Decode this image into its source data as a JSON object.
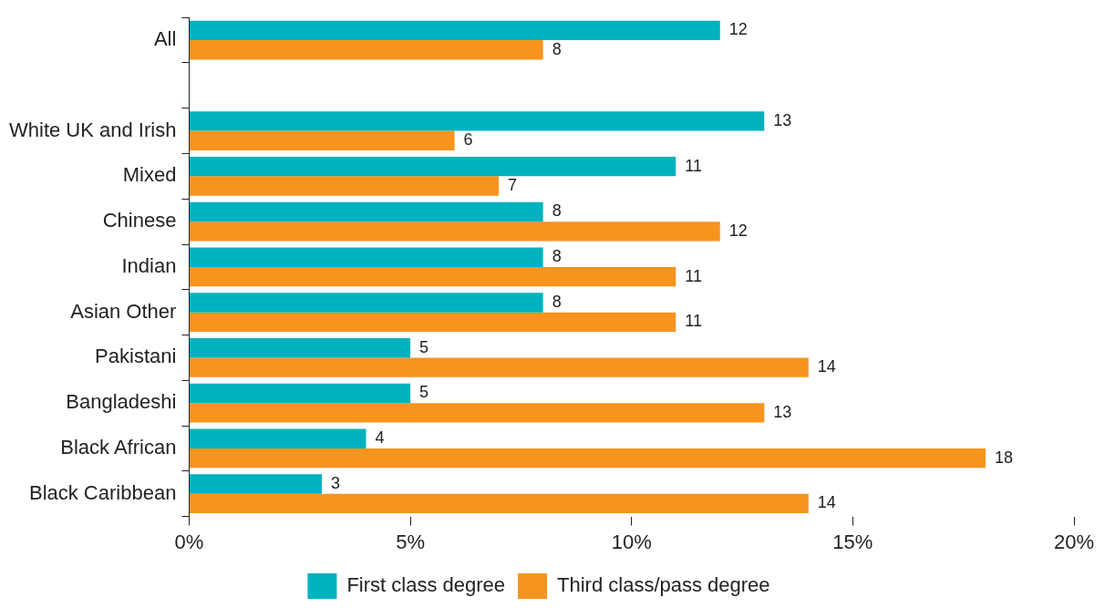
{
  "chart_data": {
    "type": "bar",
    "orientation": "horizontal",
    "categories": [
      "All",
      null,
      "White UK and Irish",
      "Mixed",
      "Chinese",
      "Indian",
      "Asian Other",
      "Pakistani",
      "Bangladeshi",
      "Black African",
      "Black Caribbean"
    ],
    "series": [
      {
        "name": "First class degree",
        "color": "#00b2bf",
        "values": [
          12,
          null,
          13,
          11,
          8,
          8,
          8,
          5,
          5,
          4,
          3
        ]
      },
      {
        "name": "Third class/pass degree",
        "color": "#f7941d",
        "values": [
          8,
          null,
          6,
          7,
          12,
          11,
          11,
          14,
          13,
          18,
          14
        ]
      }
    ],
    "xlim": [
      0,
      20
    ],
    "xticks": [
      {
        "value": 0,
        "label": "0%"
      },
      {
        "value": 5,
        "label": "5%"
      },
      {
        "value": 10,
        "label": "10%"
      },
      {
        "value": 15,
        "label": "15%"
      },
      {
        "value": 20,
        "label": "20%"
      }
    ],
    "grid": false,
    "legend": "bottom",
    "data_labels": true
  }
}
